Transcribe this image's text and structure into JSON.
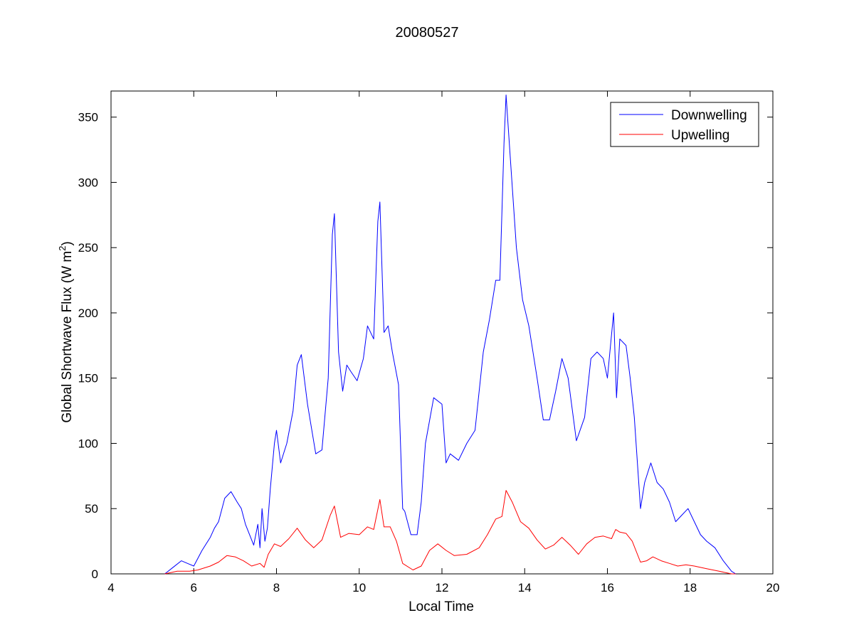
{
  "chart_data": {
    "type": "line",
    "title": "20080527",
    "xlabel": "Local Time",
    "ylabel": "Global Shortwave Flux (W m",
    "ylabel_sup": "2",
    "ylabel_close": ")",
    "xlim": [
      4,
      20
    ],
    "ylim": [
      0,
      370
    ],
    "xticks": [
      4,
      6,
      8,
      10,
      12,
      14,
      16,
      18,
      20
    ],
    "yticks": [
      0,
      50,
      100,
      150,
      200,
      250,
      300,
      350
    ],
    "grid": false,
    "legend_position": "top-right",
    "series": [
      {
        "name": "Downwelling",
        "color": "#0000ff",
        "x": [
          5.3,
          5.5,
          5.7,
          5.85,
          6.0,
          6.2,
          6.4,
          6.5,
          6.6,
          6.75,
          6.9,
          7.05,
          7.15,
          7.25,
          7.35,
          7.45,
          7.55,
          7.6,
          7.65,
          7.72,
          7.78,
          7.85,
          7.95,
          8.0,
          8.1,
          8.25,
          8.4,
          8.5,
          8.6,
          8.75,
          8.95,
          9.1,
          9.25,
          9.35,
          9.4,
          9.5,
          9.6,
          9.7,
          9.8,
          9.95,
          10.1,
          10.2,
          10.35,
          10.45,
          10.5,
          10.6,
          10.7,
          10.8,
          10.95,
          11.05,
          11.1,
          11.25,
          11.4,
          11.5,
          11.6,
          11.8,
          12.0,
          12.1,
          12.2,
          12.4,
          12.6,
          12.8,
          13.0,
          13.15,
          13.3,
          13.4,
          13.5,
          13.55,
          13.65,
          13.8,
          13.95,
          14.1,
          14.3,
          14.45,
          14.6,
          14.75,
          14.9,
          15.05,
          15.25,
          15.45,
          15.6,
          15.75,
          15.9,
          16.0,
          16.15,
          16.22,
          16.3,
          16.45,
          16.55,
          16.65,
          16.8,
          16.9,
          17.05,
          17.2,
          17.35,
          17.5,
          17.65,
          17.8,
          17.95,
          18.1,
          18.25,
          18.4,
          18.6,
          18.8,
          19.0,
          19.1
        ],
        "y": [
          0,
          5,
          10,
          8,
          6,
          18,
          28,
          35,
          40,
          58,
          63,
          55,
          50,
          38,
          30,
          22,
          38,
          20,
          50,
          25,
          35,
          65,
          100,
          110,
          85,
          100,
          125,
          160,
          168,
          130,
          92,
          95,
          150,
          260,
          276,
          170,
          140,
          160,
          155,
          148,
          165,
          190,
          180,
          270,
          285,
          185,
          190,
          170,
          145,
          50,
          48,
          30,
          30,
          55,
          100,
          135,
          130,
          85,
          92,
          87,
          100,
          110,
          170,
          195,
          225,
          225,
          330,
          367,
          320,
          250,
          210,
          190,
          150,
          118,
          118,
          140,
          165,
          150,
          102,
          120,
          165,
          170,
          165,
          150,
          200,
          135,
          180,
          175,
          150,
          120,
          50,
          70,
          85,
          70,
          65,
          55,
          40,
          45,
          50,
          40,
          30,
          25,
          20,
          10,
          2,
          0
        ]
      },
      {
        "name": "Upwelling",
        "color": "#ff0000",
        "x": [
          5.3,
          5.6,
          5.9,
          6.1,
          6.4,
          6.6,
          6.8,
          7.0,
          7.2,
          7.4,
          7.6,
          7.7,
          7.8,
          7.95,
          8.1,
          8.3,
          8.5,
          8.7,
          8.9,
          9.1,
          9.3,
          9.4,
          9.55,
          9.75,
          10.0,
          10.2,
          10.35,
          10.5,
          10.6,
          10.75,
          10.9,
          11.05,
          11.3,
          11.5,
          11.7,
          11.9,
          12.1,
          12.3,
          12.6,
          12.9,
          13.1,
          13.3,
          13.45,
          13.55,
          13.7,
          13.9,
          14.1,
          14.3,
          14.5,
          14.7,
          14.9,
          15.1,
          15.3,
          15.5,
          15.7,
          15.9,
          16.1,
          16.2,
          16.3,
          16.45,
          16.6,
          16.8,
          16.95,
          17.1,
          17.3,
          17.5,
          17.7,
          17.9,
          18.1,
          18.4,
          18.7,
          19.0,
          19.1
        ],
        "y": [
          0,
          2,
          2,
          3,
          6,
          9,
          14,
          13,
          10,
          6,
          8,
          5,
          15,
          23,
          21,
          27,
          35,
          26,
          20,
          26,
          45,
          52,
          28,
          31,
          30,
          36,
          34,
          57,
          36,
          36,
          25,
          8,
          3,
          6,
          18,
          23,
          18,
          14,
          15,
          20,
          30,
          42,
          44,
          64,
          55,
          40,
          35,
          26,
          19,
          22,
          28,
          22,
          15,
          23,
          28,
          29,
          27,
          34,
          32,
          31,
          25,
          9,
          10,
          13,
          10,
          8,
          6,
          7,
          6,
          4,
          2,
          0,
          0
        ]
      }
    ]
  }
}
